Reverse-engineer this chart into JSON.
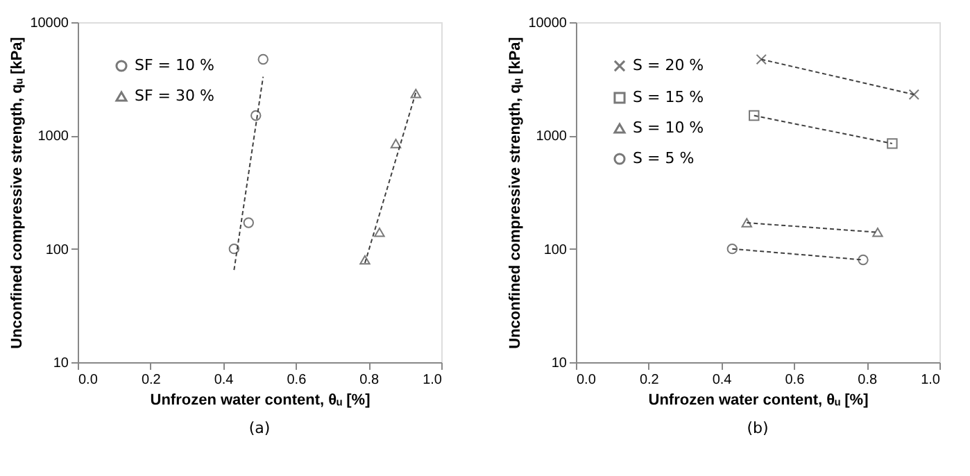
{
  "chart_data": [
    {
      "type": "scatter",
      "xlabel": "Unfrozen water content, θᵤ [%]",
      "ylabel": "Unconfined compressive strength, qᵤ [kPa]",
      "xlim": [
        0,
        1
      ],
      "xticks": [
        {
          "value": 0,
          "label": "0.0"
        },
        {
          "value": 0.2,
          "label": "0.2"
        },
        {
          "value": 0.4,
          "label": "0.4"
        },
        {
          "value": 0.6,
          "label": "0.6"
        },
        {
          "value": 0.8,
          "label": "0.8"
        },
        {
          "value": 1,
          "label": "1.0"
        }
      ],
      "ylim": [
        10,
        10000
      ],
      "yticks": [
        10,
        100,
        1000,
        10000
      ],
      "log": true,
      "grid": false,
      "legend": "top left",
      "annotations": [
        "(a)"
      ],
      "series": [
        {
          "name": "SF = 10 %",
          "marker": "circle",
          "color": "#404040",
          "x": [
            0.43,
            0.47,
            0.49,
            0.51
          ],
          "values": [
            100,
            170,
            1500,
            4700
          ]
        },
        {
          "name": "SF = 30 %",
          "marker": "triangle",
          "color": "#404040",
          "x": [
            0.79,
            0.83,
            0.875,
            0.93
          ],
          "values": [
            80,
            140,
            850,
            2350
          ]
        },
        {
          "type": "line",
          "line_style": "dashed",
          "marker": "none",
          "color": "#404040",
          "x": [
            0.43,
            0.51
          ],
          "values": [
            65,
            3300
          ]
        },
        {
          "type": "line",
          "line_style": "dashed",
          "marker": "none",
          "color": "#404040",
          "x": [
            0.79,
            0.93
          ],
          "values": [
            75,
            2400
          ]
        }
      ]
    },
    {
      "type": "line",
      "xlabel": "Unfrozen water content, θᵤ [%]",
      "ylabel": "Unconfined compressive strength, qᵤ [kPa]",
      "xlim": [
        0,
        1
      ],
      "xticks": [
        {
          "value": 0,
          "label": "0.0"
        },
        {
          "value": 0.2,
          "label": "0.2"
        },
        {
          "value": 0.4,
          "label": "0.4"
        },
        {
          "value": 0.6,
          "label": "0.6"
        },
        {
          "value": 0.8,
          "label": "0.8"
        },
        {
          "value": 1,
          "label": "1.0"
        }
      ],
      "ylim": [
        10,
        10000
      ],
      "yticks": [
        10,
        100,
        1000,
        10000
      ],
      "log": true,
      "grid": false,
      "legend": "top left",
      "annotations": [
        "(b)"
      ],
      "series": [
        {
          "name": "S = 20 %",
          "line_style": "dashed",
          "marker": "cross",
          "color": "#404040",
          "x": [
            0.51,
            0.93
          ],
          "values": [
            4700,
            2300
          ]
        },
        {
          "name": "S = 15 %",
          "line_style": "dashed",
          "marker": "square",
          "color": "#404040",
          "x": [
            0.49,
            0.87
          ],
          "values": [
            1500,
            850
          ]
        },
        {
          "name": "S = 10 %",
          "line_style": "dashed",
          "marker": "triangle",
          "color": "#404040",
          "x": [
            0.47,
            0.83
          ],
          "values": [
            170,
            140
          ]
        },
        {
          "name": "S = 5 %",
          "line_style": "dashed",
          "marker": "circle",
          "color": "#404040",
          "x": [
            0.43,
            0.79
          ],
          "values": [
            100,
            80
          ]
        }
      ]
    }
  ]
}
